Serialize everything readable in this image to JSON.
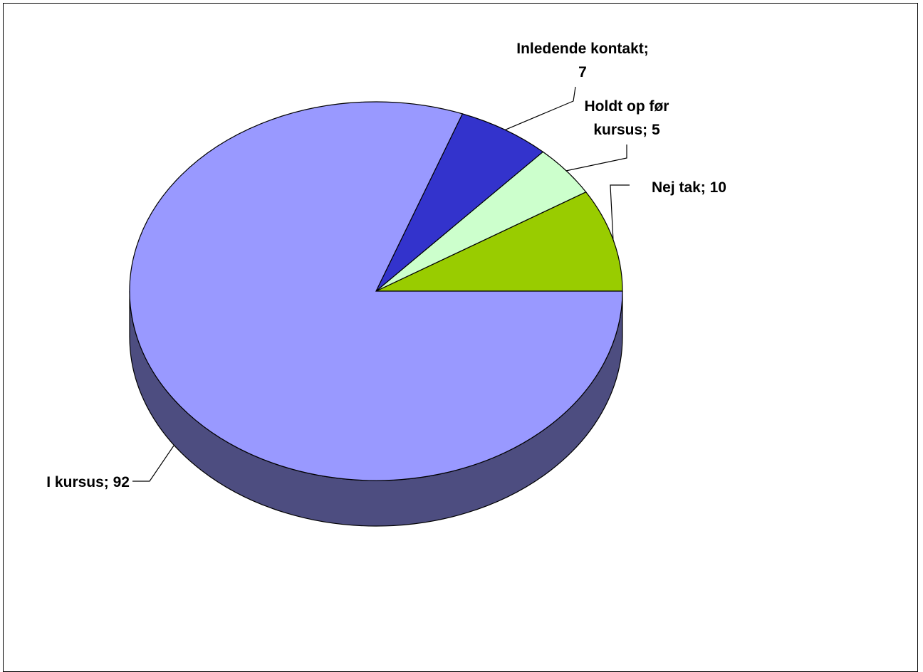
{
  "chart_data": {
    "type": "pie",
    "style": "3d",
    "slices": [
      {
        "label": "Nej tak",
        "value": 10,
        "display": "Nej tak; 10",
        "color": "#99cc00"
      },
      {
        "label": "Holdt op før kursus",
        "value": 5,
        "display_lines": [
          "Holdt op før",
          "kursus; 5"
        ],
        "color": "#ccffcc"
      },
      {
        "label": "Inledende kontakt",
        "value": 7,
        "display_lines": [
          "Inledende kontakt;",
          "7"
        ],
        "color": "#3333cc"
      },
      {
        "label": "I kursus",
        "value": 92,
        "display": "I kursus; 92",
        "color": "#9999ff"
      }
    ],
    "side_color": "#4d4d80",
    "legend": "none"
  }
}
